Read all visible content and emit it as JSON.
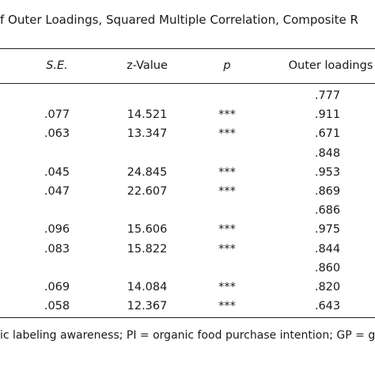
{
  "caption": "f Outer Loadings, Squared Multiple Correlation, Composite R",
  "headers": {
    "se": "S.E.",
    "z": "z-Value",
    "p": "p",
    "loadings": "Outer loadings"
  },
  "rows": [
    {
      "se": "",
      "z": "",
      "p": "",
      "loading": ".777"
    },
    {
      "se": ".077",
      "z": "14.521",
      "p": "***",
      "loading": ".911"
    },
    {
      "se": ".063",
      "z": "13.347",
      "p": "***",
      "loading": ".671"
    },
    {
      "se": "",
      "z": "",
      "p": "",
      "loading": ".848"
    },
    {
      "se": ".045",
      "z": "24.845",
      "p": "***",
      "loading": ".953"
    },
    {
      "se": ".047",
      "z": "22.607",
      "p": "***",
      "loading": ".869"
    },
    {
      "se": "",
      "z": "",
      "p": "",
      "loading": ".686"
    },
    {
      "se": ".096",
      "z": "15.606",
      "p": "***",
      "loading": ".975"
    },
    {
      "se": ".083",
      "z": "15.822",
      "p": "***",
      "loading": ".844"
    },
    {
      "se": "",
      "z": "",
      "p": "",
      "loading": ".860"
    },
    {
      "se": ".069",
      "z": "14.084",
      "p": "***",
      "loading": ".820"
    },
    {
      "se": ".058",
      "z": "12.367",
      "p": "***",
      "loading": ".643"
    }
  ],
  "note": "ic labeling awareness; PI = organic food purchase intention; GP = gree"
}
